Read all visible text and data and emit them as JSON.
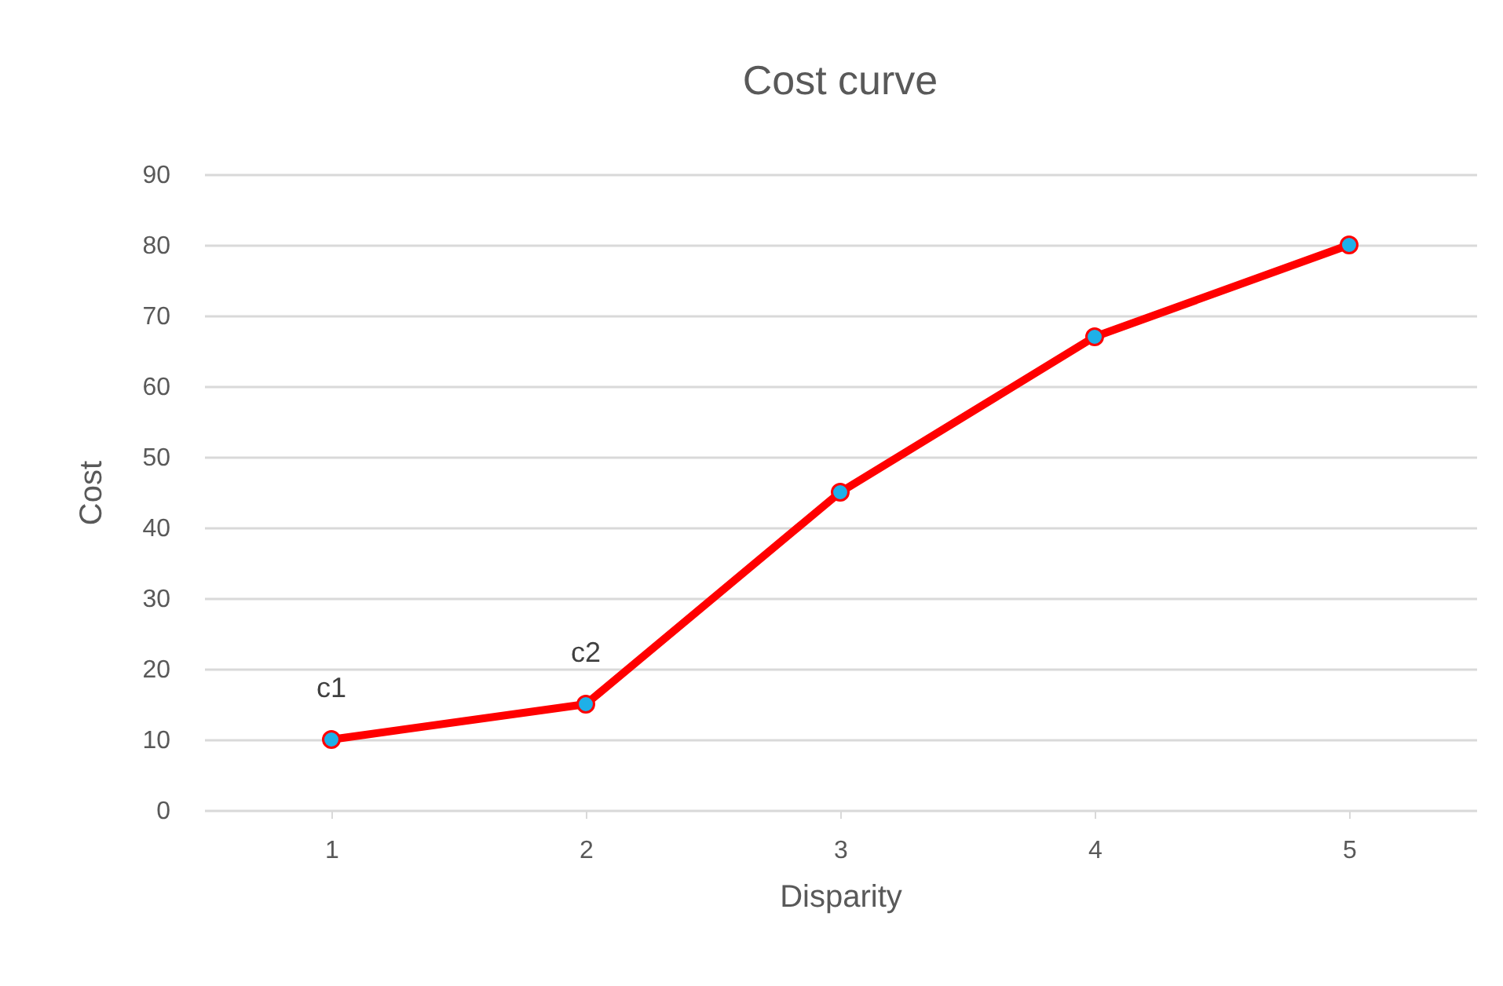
{
  "chart_data": {
    "type": "line",
    "title": "Cost curve",
    "xlabel": "Disparity",
    "ylabel": "Cost",
    "categories": [
      "1",
      "2",
      "3",
      "4",
      "5"
    ],
    "series": [
      {
        "color": "#ff0000",
        "values": [
          10,
          15,
          45,
          67,
          80
        ]
      }
    ],
    "ylim": [
      0,
      90
    ],
    "yticks": [
      0,
      10,
      20,
      30,
      40,
      50,
      60,
      70,
      80,
      90
    ],
    "grid": "y",
    "marker": "circle",
    "line_style": "solid",
    "annotations": [
      {
        "text": "c1",
        "x": "1",
        "y": 10
      },
      {
        "text": "c2",
        "x": "2",
        "y": 15
      }
    ]
  }
}
